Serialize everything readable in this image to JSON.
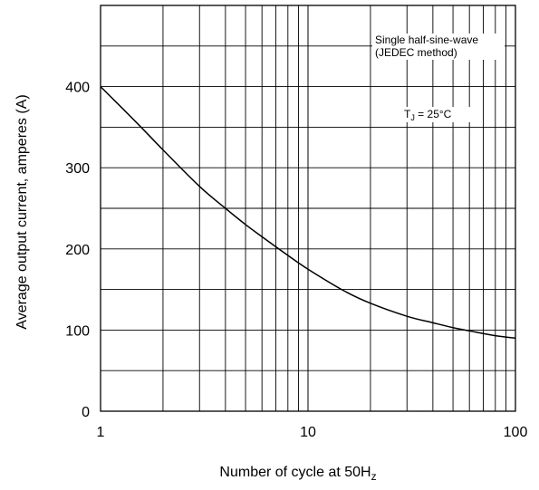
{
  "chart_data": {
    "type": "line",
    "xscale": "log",
    "xlim": [
      1,
      100
    ],
    "ylim": [
      0,
      500
    ],
    "grid": true,
    "xlabel": "Number of cycle at 50H",
    "xlabel_sub": "z",
    "ylabel": "Average output current, amperes (A)",
    "x_ticks": [
      1,
      10,
      100
    ],
    "x_tick_labels": [
      "1",
      "10",
      "100"
    ],
    "y_ticks": [
      0,
      100,
      200,
      300,
      400
    ],
    "y_tick_labels": [
      "0",
      "100",
      "200",
      "300",
      "400"
    ],
    "annotations": {
      "method_line1": "Single half-sine-wave",
      "method_line2": "(JEDEC method)",
      "tj_prefix": "T",
      "tj_sub": "J",
      "tj_suffix": " = 25°C"
    },
    "series": [
      {
        "x": [
          1,
          1.5,
          2,
          3,
          4,
          5,
          6,
          8,
          10,
          15,
          20,
          30,
          40,
          50,
          60,
          80,
          100
        ],
        "values": [
          400,
          355,
          322,
          277,
          250,
          230,
          215,
          192,
          175,
          148,
          133,
          117,
          109,
          103,
          99,
          93,
          90
        ]
      }
    ],
    "line_color": "#000000"
  }
}
